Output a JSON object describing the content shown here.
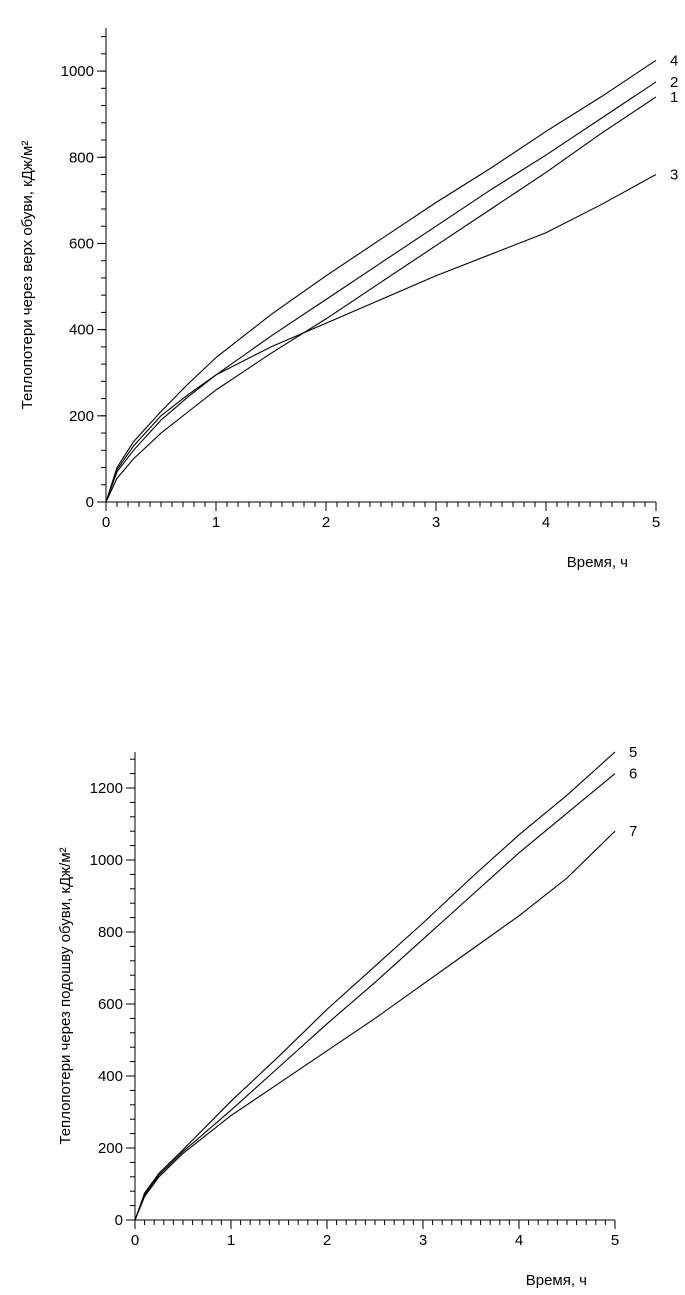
{
  "chart_data": [
    {
      "type": "line",
      "title": "",
      "xlabel": "Время, ч",
      "ylabel": "Теплопотери через верх обуви, кДж/м²",
      "xlim": [
        0,
        5
      ],
      "ylim": [
        0,
        1100
      ],
      "xticks": [
        0,
        1,
        2,
        3,
        4,
        5
      ],
      "yticks": [
        0,
        200,
        400,
        600,
        800,
        1000
      ],
      "grid": false,
      "series": [
        {
          "name": "1",
          "x": [
            0,
            0.1,
            0.25,
            0.5,
            0.75,
            1,
            1.5,
            2,
            2.5,
            3,
            3.5,
            4,
            4.5,
            5
          ],
          "values": [
            0,
            55,
            100,
            160,
            210,
            260,
            345,
            425,
            510,
            595,
            680,
            765,
            855,
            940
          ]
        },
        {
          "name": "2",
          "x": [
            0,
            0.1,
            0.25,
            0.5,
            0.75,
            1,
            1.5,
            2,
            2.5,
            3,
            3.5,
            4,
            4.5,
            5
          ],
          "values": [
            0,
            70,
            120,
            190,
            245,
            295,
            385,
            470,
            555,
            640,
            725,
            805,
            890,
            975
          ]
        },
        {
          "name": "3",
          "x": [
            0,
            0.1,
            0.25,
            0.5,
            0.75,
            1,
            1.5,
            2,
            2.5,
            3,
            3.5,
            4,
            4.5,
            5
          ],
          "values": [
            0,
            75,
            130,
            200,
            250,
            295,
            360,
            415,
            470,
            525,
            575,
            625,
            690,
            760
          ]
        },
        {
          "name": "4",
          "x": [
            0,
            0.1,
            0.25,
            0.5,
            0.75,
            1,
            1.5,
            2,
            2.5,
            3,
            3.5,
            4,
            4.5,
            5
          ],
          "values": [
            0,
            80,
            140,
            210,
            275,
            335,
            435,
            525,
            610,
            695,
            775,
            860,
            940,
            1025
          ]
        }
      ]
    },
    {
      "type": "line",
      "title": "",
      "xlabel": "Время, ч",
      "ylabel": "Теплопотери через подошву обуви, кДж/м²",
      "xlim": [
        0,
        5
      ],
      "ylim": [
        0,
        1300
      ],
      "xticks": [
        0,
        1,
        2,
        3,
        4,
        5
      ],
      "yticks": [
        0,
        200,
        400,
        600,
        800,
        1000,
        1200
      ],
      "grid": false,
      "series": [
        {
          "name": "5",
          "x": [
            0,
            0.1,
            0.25,
            0.5,
            1,
            1.5,
            2,
            2.5,
            3,
            3.5,
            4,
            4.5,
            5
          ],
          "values": [
            0,
            75,
            130,
            195,
            330,
            455,
            585,
            705,
            825,
            950,
            1070,
            1180,
            1300
          ]
        },
        {
          "name": "6",
          "x": [
            0,
            0.1,
            0.25,
            0.5,
            1,
            1.5,
            2,
            2.5,
            3,
            3.5,
            4,
            4.5,
            5
          ],
          "values": [
            0,
            70,
            125,
            190,
            305,
            425,
            545,
            660,
            780,
            900,
            1020,
            1130,
            1240
          ]
        },
        {
          "name": "7",
          "x": [
            0,
            0.1,
            0.25,
            0.5,
            1,
            1.5,
            2,
            2.5,
            3,
            3.5,
            4,
            4.5,
            5
          ],
          "values": [
            0,
            65,
            120,
            185,
            290,
            380,
            470,
            560,
            655,
            750,
            845,
            950,
            1080
          ]
        }
      ]
    }
  ],
  "colors": {
    "line": "#000000",
    "axis": "#000000",
    "background": "#ffffff"
  }
}
